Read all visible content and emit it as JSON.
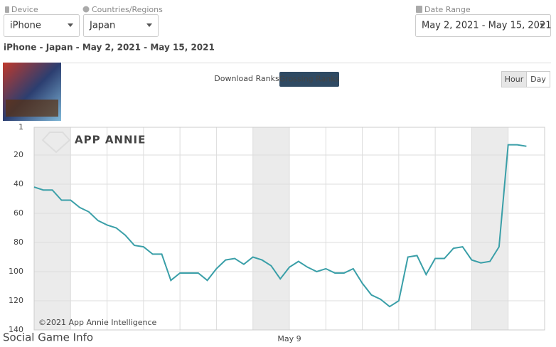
{
  "filters": {
    "device_label": "Device",
    "device": "iPhone",
    "country_label": "Countries/Regions",
    "country": "Japan",
    "date_label": "Date Range",
    "date_range": "May 2, 2021 - May 15, 2021"
  },
  "subtitle": "iPhone - Japan - May 2, 2021 - May 15, 2021",
  "tabs": [
    "Download Ranks",
    "Grossing Ranks"
  ],
  "granularity": [
    "Hour",
    "Day"
  ],
  "watermark": "APP ANNIE",
  "copyright": "©2021 App Annie Intelligence",
  "site_watermark": "Social Game Info",
  "chart_data": {
    "type": "line",
    "invert_y": true,
    "grid": true,
    "ylim": [
      1,
      140
    ],
    "yticks": [
      1,
      20,
      40,
      60,
      80,
      100,
      120,
      140
    ],
    "categories": [
      null,
      null,
      null,
      null,
      null,
      null,
      null,
      null,
      null,
      null,
      null,
      null,
      null,
      null,
      null,
      null,
      null,
      null,
      null,
      null,
      null,
      null,
      null,
      null,
      null,
      null,
      null,
      null,
      "May 9",
      null,
      null,
      null,
      null,
      null,
      null,
      null,
      null,
      null,
      null,
      null,
      null,
      null,
      null,
      null,
      null,
      null,
      null,
      null,
      null,
      null,
      null,
      null,
      null,
      null,
      null
    ],
    "series": [
      {
        "name": "Grossing Ranks",
        "color": "#3a9fa8",
        "values": [
          42,
          44,
          44,
          51,
          51,
          56,
          59,
          65,
          68,
          70,
          75,
          82,
          83,
          88,
          88,
          106,
          101,
          101,
          101,
          106,
          98,
          92,
          91,
          95,
          90,
          92,
          96,
          105,
          97,
          93,
          97,
          100,
          98,
          101,
          101,
          98,
          108,
          116,
          119,
          124,
          120,
          90,
          89,
          102,
          91,
          91,
          84,
          83,
          92,
          94,
          93,
          83,
          13,
          13,
          14
        ]
      }
    ]
  }
}
